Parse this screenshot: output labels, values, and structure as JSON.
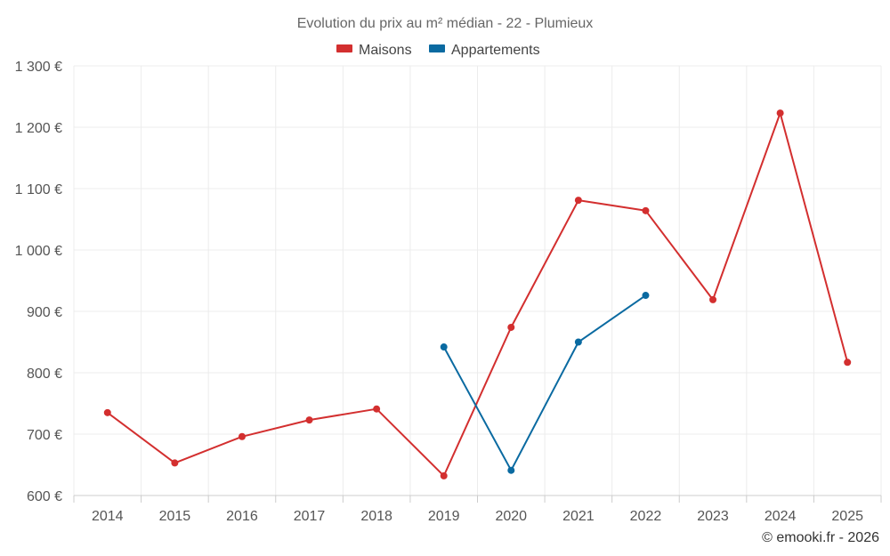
{
  "chart_data": {
    "type": "line",
    "title": "Evolution du prix au m² médian - 22 - Plumieux",
    "categories": [
      "2014",
      "2015",
      "2016",
      "2017",
      "2018",
      "2019",
      "2020",
      "2021",
      "2022",
      "2023",
      "2024",
      "2025"
    ],
    "y_tick_labels": [
      "600 €",
      "700 €",
      "800 €",
      "900 €",
      "1 000 €",
      "1 100 €",
      "1 200 €",
      "1 300 €"
    ],
    "ylim": [
      600,
      1300
    ],
    "y_ticks": [
      600,
      700,
      800,
      900,
      1000,
      1100,
      1200,
      1300
    ],
    "grid": true,
    "legend_position": "top-center",
    "series": [
      {
        "name": "Maisons",
        "color": "#d32f2f",
        "values": [
          735,
          653,
          696,
          723,
          741,
          632,
          874,
          1081,
          1064,
          919,
          1223,
          817
        ]
      },
      {
        "name": "Appartements",
        "color": "#0a6aa1",
        "values": [
          null,
          null,
          null,
          null,
          null,
          842,
          641,
          850,
          926,
          null,
          null,
          null
        ]
      }
    ],
    "credit": "© emooki.fr - 2026"
  }
}
